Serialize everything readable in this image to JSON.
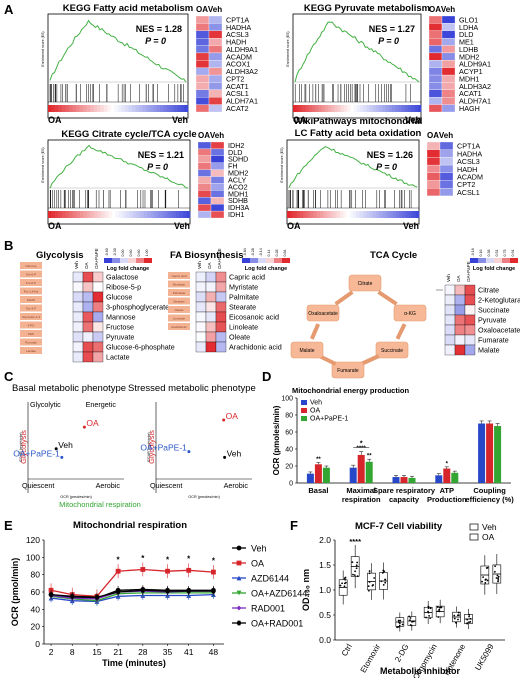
{
  "panels": {
    "A": {
      "letter": "A",
      "gsea": [
        {
          "title": "KEGG Fatty acid metabolism",
          "nes": "NES = 1.28",
          "p": "P = 0",
          "left": "OA",
          "right": "Veh",
          "genes": [
            "CPT1A",
            "HADHA",
            "ACSL3",
            "HADH",
            "ALDH9A1",
            "ACADM",
            "ACOX1",
            "ALDH3A2",
            "CPT2",
            "ACAT1",
            "ACSL1",
            "ALDH7A1",
            "ACAT2"
          ]
        },
        {
          "title": "KEGG Pyruvate metabolism",
          "nes": "NES = 1.27",
          "p": "P = 0",
          "left": "OA",
          "right": "Veh",
          "genes": [
            "GLO1",
            "LDHA",
            "DLD",
            "ME1",
            "LDHB",
            "MDH2",
            "ALDH9A1",
            "ACYP1",
            "MDH1",
            "ALDH3A2",
            "ACAT1",
            "ALDH7A1",
            "HAGH"
          ]
        },
        {
          "title": "KEGG Citrate cycle/TCA cycle",
          "nes": "NES = 1.21",
          "p": "P = 0",
          "left": "OA",
          "right": "Veh",
          "genes": [
            "IDH2",
            "DLD",
            "SDHD",
            "FH",
            "MDH2",
            "ACLY",
            "ACO2",
            "MDH1",
            "SDHB",
            "IDH3A",
            "IDH1"
          ]
        },
        {
          "title": "WikiPathways mitochondrial LC Fatty acid beta oxidation",
          "title1": "WikiPathways mitochondrial",
          "title2": "LC Fatty acid beta oxidation",
          "nes": "NES = 1.26",
          "p": "P = 0",
          "left": "OA",
          "right": "Veh",
          "genes": [
            "CPT1A",
            "HADHA",
            "ACSL3",
            "HADH",
            "ACADM",
            "CPT2",
            "ACSL1"
          ]
        }
      ],
      "heat_cols": [
        "OA",
        "Veh"
      ]
    },
    "B": {
      "letter": "B",
      "glycolysis": {
        "title": "Glycolysis",
        "scale_label": "Log fold change",
        "cols": [
          "Veh",
          "OA",
          "OA+PaPE"
        ],
        "scale_ticks": [
          "-0.60",
          "-0.30",
          "0.00",
          "0.60",
          "0.60",
          "1.00"
        ],
        "rows": [
          "Galactose",
          "Ribose-5-p",
          "Glucose",
          "3-phosphoglycerate",
          "Mannose",
          "Fructose",
          "Pyruvate",
          "Glucose-6-phosphate",
          "Lactate"
        ],
        "chips": [
          "Glucose",
          "Glc-6-P",
          "Fru-6-P",
          "Fru-1,6-bis",
          "DHAP",
          "Gly-3-P",
          "Glycerate-1,3",
          "3-PG",
          "PEP",
          "Pyruvate",
          "Lactate"
        ]
      },
      "fa": {
        "title": "FA Biosynthesis",
        "scale_label": "Log fold change",
        "cols": [
          "Veh",
          "OA",
          "OA+PaPE"
        ],
        "scale_ticks": [
          "-0.84",
          "-0.28",
          "-0.14",
          "0.14",
          "0.28",
          "0.84"
        ],
        "rows": [
          "Capric acid",
          "Myristate",
          "Palmitate",
          "Stearate",
          "Eicosanoic acid",
          "Linoleate",
          "Oleate",
          "Arachidonic acid"
        ],
        "chips": [
          "Capric acid",
          "Myristate",
          "Palmitate",
          "Stearate",
          "Oleate",
          "Linoleate",
          "Arachidonic"
        ]
      },
      "tca": {
        "title": "TCA Cycle",
        "scale_label": "Log fold change",
        "cols": [
          "Veh",
          "OA",
          "OA+PaPE"
        ],
        "scale_ticks": [
          "-0.16",
          "0.16",
          "0.38",
          "0.51",
          "0.75",
          "0.91"
        ],
        "rows": [
          "Citrate",
          "2-Ketoglutarate",
          "Succinate",
          "Pyruvate",
          "Oxaloacetate",
          "Fumarate",
          "Malate"
        ],
        "nodes": [
          "Citrate",
          "α-KG",
          "Succinate",
          "Fumarate",
          "Malate",
          "Oxaloacetate"
        ]
      }
    },
    "C": {
      "letter": "C",
      "plots": [
        {
          "title": "Basal metabolic phenotype",
          "q_glycolytic": "Glycolytic",
          "q_energetic": "Energetic",
          "q_quiescent": "Quiescent",
          "q_aerobic": "Aerobic",
          "ylabel1": "ECAR (mpH/min)",
          "ylabel2": "Glycolysis",
          "xlabel": "OCR (pmoles/min)",
          "xlabel2": "Mitochondrial respiration",
          "points": [
            {
              "label": "OA",
              "x": 0.6,
              "y": 0.72,
              "color": "#d6262b"
            },
            {
              "label": "Veh",
              "x": 0.3,
              "y": 0.42,
              "color": "#000000"
            },
            {
              "label": "OA+PaPE-1",
              "x": 0.36,
              "y": 0.3,
              "color": "#2a56c6"
            }
          ]
        },
        {
          "title": "Stressed metabolic phenotype",
          "q_glycolytic": "",
          "q_energetic": "",
          "q_quiescent": "Quiescent",
          "q_aerobic": "Aerobic",
          "ylabel1": "ECAR (mpH/min)",
          "ylabel2": "Glycolysis",
          "xlabel": "OCR (pmoles/min)",
          "xlabel2": "",
          "points": [
            {
              "label": "OA",
              "x": 0.72,
              "y": 0.82,
              "color": "#d6262b"
            },
            {
              "label": "OA+PaPE-1",
              "x": 0.35,
              "y": 0.38,
              "color": "#2a56c6"
            },
            {
              "label": "Veh",
              "x": 0.73,
              "y": 0.3,
              "color": "#000000"
            }
          ]
        }
      ]
    },
    "D": {
      "letter": "D",
      "chart_data": {
        "type": "bar",
        "title": "Mitochondrial energy production",
        "ylabel": "OCR (pmoles/min)",
        "ylim": [
          0,
          100
        ],
        "yticks": [
          0,
          20,
          40,
          60,
          80,
          100
        ],
        "categories": [
          "Basal",
          "Maximal respiration",
          "Spare respiratory capacity",
          "ATP Production",
          "Coupling efficiency (%)"
        ],
        "category_lines": [
          [
            "Basal"
          ],
          [
            "Maximal",
            "respiration"
          ],
          [
            "Spare respiratory",
            "capacity"
          ],
          [
            "ATP",
            "Production"
          ],
          [
            "Coupling",
            "efficiency (%)"
          ]
        ],
        "series": [
          {
            "name": "Veh",
            "color": "#2747c9",
            "values": [
              11,
              18,
              7,
              9,
              70
            ],
            "errors": [
              2,
              3,
              2,
              2,
              3
            ]
          },
          {
            "name": "OA",
            "color": "#d6262b",
            "values": [
              22,
              33,
              7,
              17,
              70
            ],
            "errors": [
              2,
              4,
              2,
              2,
              3
            ]
          },
          {
            "name": "OA+PaPE-1",
            "color": "#33a532",
            "values": [
              18,
              25,
              6,
              12,
              67
            ],
            "errors": [
              2,
              3,
              2,
              2,
              3
            ]
          }
        ],
        "annotations": [
          "**",
          "****",
          "*",
          "**",
          "*"
        ]
      }
    },
    "E": {
      "letter": "E",
      "chart_data": {
        "type": "line",
        "title": "Mitochondrial respiration",
        "xlabel": "Time (minutes)",
        "ylabel": "OCR (pmol/min)",
        "x": [
          2,
          8,
          15,
          21,
          28,
          35,
          41,
          48
        ],
        "ylim": [
          0,
          120
        ],
        "yticks": [
          0,
          20,
          40,
          60,
          80,
          100,
          120
        ],
        "series": [
          {
            "name": "Veh",
            "color": "#000000",
            "marker": "circle",
            "values": [
              57,
              54,
              53,
              62,
              63,
              62,
              62,
              62
            ]
          },
          {
            "name": "OA",
            "color": "#d6262b",
            "marker": "square",
            "values": [
              62,
              57,
              55,
              84,
              86,
              84,
              85,
              83
            ]
          },
          {
            "name": "AZD6144",
            "color": "#2747c9",
            "marker": "triangle",
            "values": [
              53,
              50,
              49,
              55,
              56,
              56,
              56,
              57
            ]
          },
          {
            "name": "OA+AZD6144",
            "color": "#33a532",
            "marker": "invtriangle",
            "values": [
              55,
              52,
              50,
              58,
              59,
              59,
              59,
              59
            ]
          },
          {
            "name": "RAD001",
            "color": "#7b2cbf",
            "marker": "diamond",
            "values": [
              56,
              53,
              52,
              60,
              61,
              60,
              61,
              61
            ]
          },
          {
            "name": "OA+RAD001",
            "color": "#000000",
            "marker": "hexagon",
            "values": [
              57,
              55,
              54,
              60,
              62,
              61,
              61,
              61
            ]
          }
        ],
        "annotations": [
          "*",
          "*",
          "*",
          "*",
          "*"
        ]
      }
    },
    "F": {
      "letter": "F",
      "chart_data": {
        "type": "box",
        "title": "MCF-7 Cell viability",
        "ylabel": "OD₄₉₀ nm",
        "xlabel": "Metabolic inhibitor",
        "ylim": [
          0,
          2
        ],
        "yticks": [
          0,
          0.5,
          1,
          1.5,
          2
        ],
        "ytick_labels": [
          "0.0",
          "0.5",
          "1.0",
          "1.5",
          "2.0"
        ],
        "categories": [
          "Ctrl",
          "Etomoxir",
          "2-DG",
          "Oligomycin",
          "Rotenone",
          "UK5099"
        ],
        "series": [
          {
            "name": "Veh",
            "medians": [
              1.05,
              1.17,
              0.36,
              0.55,
              0.46,
              1.3
            ]
          },
          {
            "name": "OA",
            "medians": [
              1.47,
              1.18,
              0.38,
              0.57,
              0.42,
              1.32
            ]
          }
        ],
        "annotations": [
          "****"
        ]
      }
    }
  }
}
